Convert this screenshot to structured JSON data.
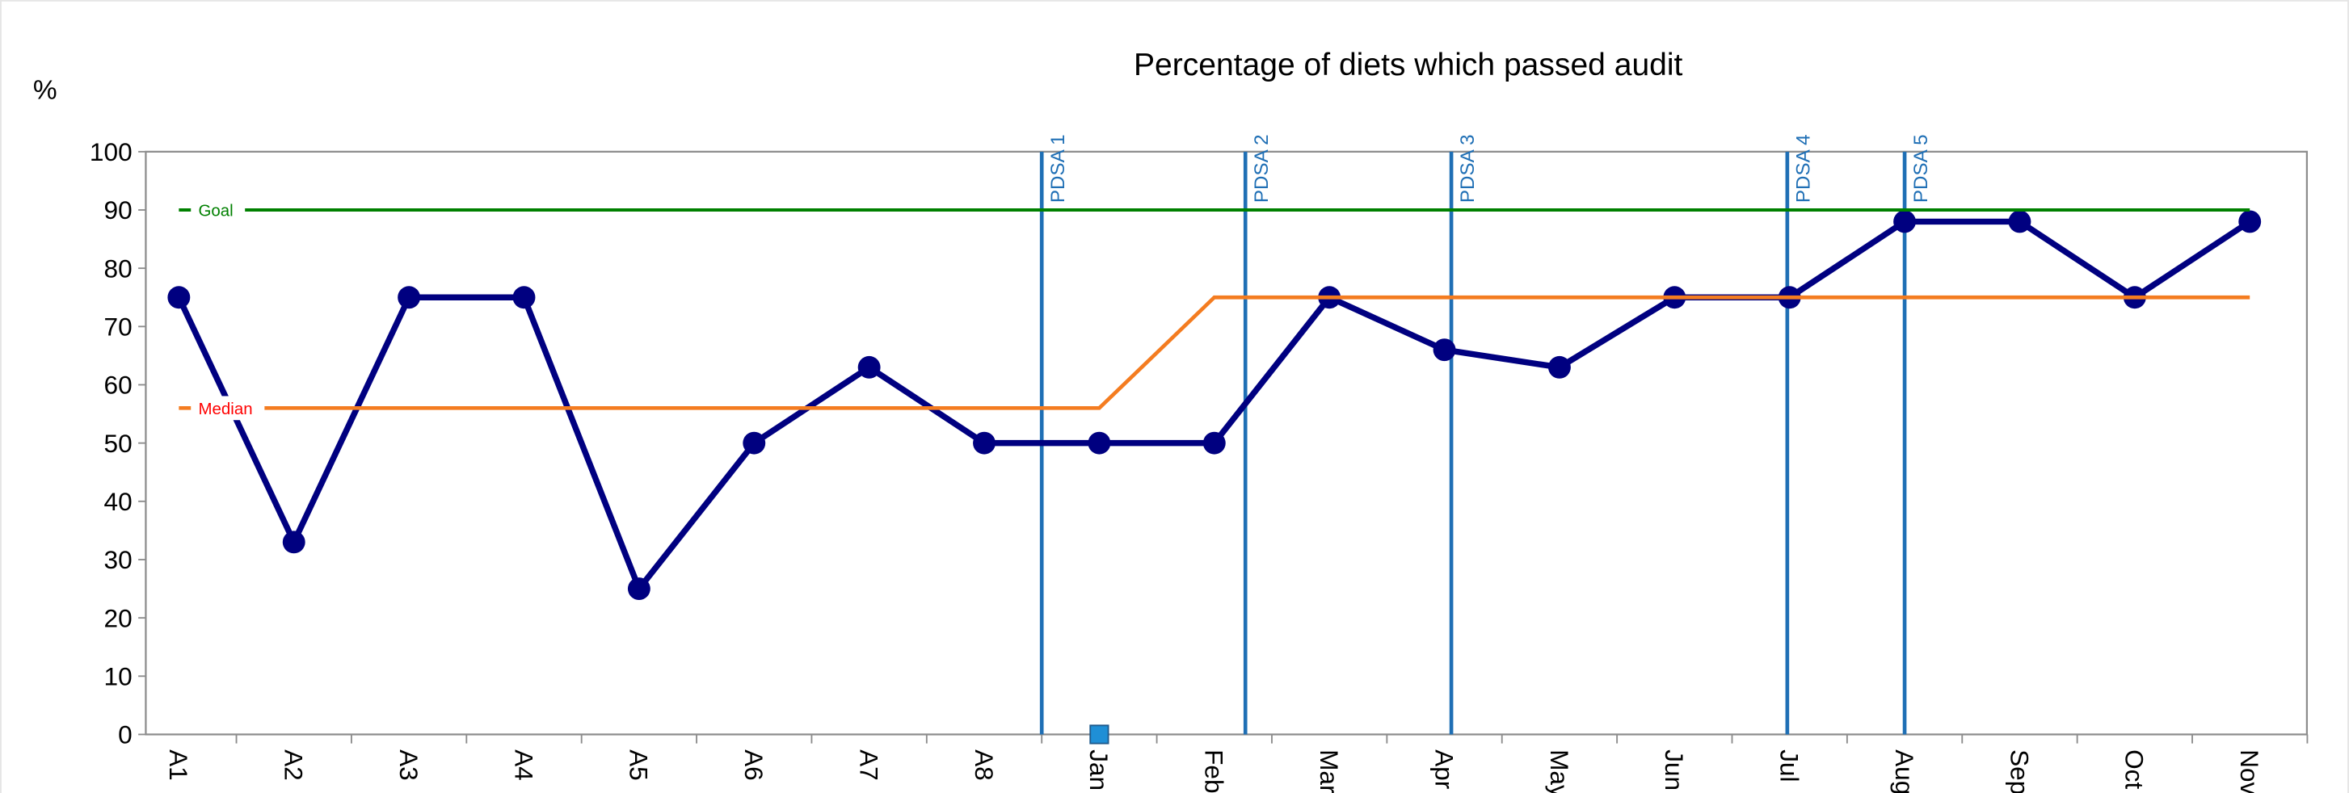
{
  "chart_data": {
    "type": "line",
    "title": "Percentage of diets which passed audit",
    "ylabel": "%",
    "categories": [
      "A1",
      "A2",
      "A3",
      "A4",
      "A5",
      "A6",
      "A7",
      "A8",
      "Jan",
      "Feb",
      "Mar",
      "Apr",
      "May",
      "Jun",
      "Jul",
      "Aug",
      "Sep",
      "Oct",
      "Nov"
    ],
    "series": [
      {
        "color": "#000080",
        "values": [
          75,
          33,
          75,
          75,
          25,
          50,
          63,
          50,
          50,
          50,
          75,
          66,
          63,
          75,
          75,
          88,
          88,
          75,
          88
        ]
      },
      {
        "name": "Median",
        "color": "#f47c20",
        "values": [
          56,
          56,
          56,
          56,
          56,
          56,
          56,
          56,
          56,
          75,
          75,
          75,
          75,
          75,
          75,
          75,
          75,
          75,
          75
        ]
      },
      {
        "name": "Goal",
        "color": "#008000",
        "values": [
          90,
          90,
          90,
          90,
          90,
          90,
          90,
          90,
          90,
          90,
          90,
          90,
          90,
          90,
          90,
          90,
          90,
          90,
          90
        ]
      },
      {
        "color": "#1f8fd6",
        "values": [
          null,
          null,
          null,
          null,
          null,
          null,
          null,
          null,
          0,
          null,
          null,
          null,
          null,
          null,
          null,
          null,
          null,
          null,
          null
        ]
      }
    ],
    "annotations": [
      {
        "label": "PDSA 1",
        "x": 7.5
      },
      {
        "label": "PDSA 2",
        "x": 9.27
      },
      {
        "label": "PDSA 3",
        "x": 11.06
      },
      {
        "label": "PDSA 4",
        "x": 13.98
      },
      {
        "label": "PDSA 5",
        "x": 15.0
      }
    ],
    "ylim": [
      0,
      100
    ],
    "yticks": [
      0,
      10,
      20,
      30,
      40,
      50,
      60,
      70,
      80,
      90,
      100
    ]
  }
}
